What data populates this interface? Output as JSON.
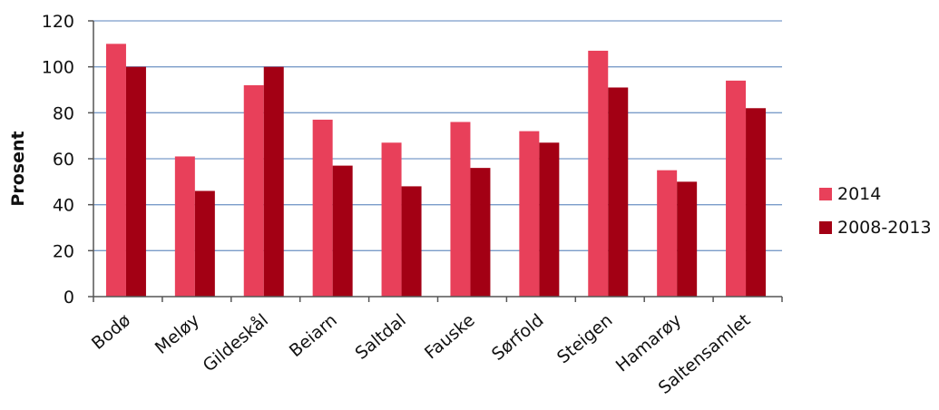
{
  "chart_data": {
    "type": "bar",
    "categories": [
      "Bodø",
      "Meløy",
      "Gildeskål",
      "Beiarn",
      "Saltdal",
      "Fauske",
      "Sørfold",
      "Steigen",
      "Hamarøy",
      "Saltensamlet"
    ],
    "series": [
      {
        "name": "2014",
        "color": "#e8405a",
        "values": [
          110,
          61,
          92,
          77,
          67,
          76,
          72,
          107,
          55,
          94
        ]
      },
      {
        "name": "2008-2013",
        "color": "#a30014",
        "values": [
          100,
          46,
          100,
          57,
          48,
          56,
          67,
          91,
          50,
          82
        ]
      }
    ],
    "title": "",
    "xlabel": "",
    "ylabel": "Prosent",
    "ylim": [
      0,
      120
    ],
    "yticks": [
      "0",
      "20",
      "40",
      "60",
      "80",
      "100",
      "120"
    ],
    "grid": true,
    "gridColor": "#7a9cc9",
    "legend_position": "right"
  }
}
